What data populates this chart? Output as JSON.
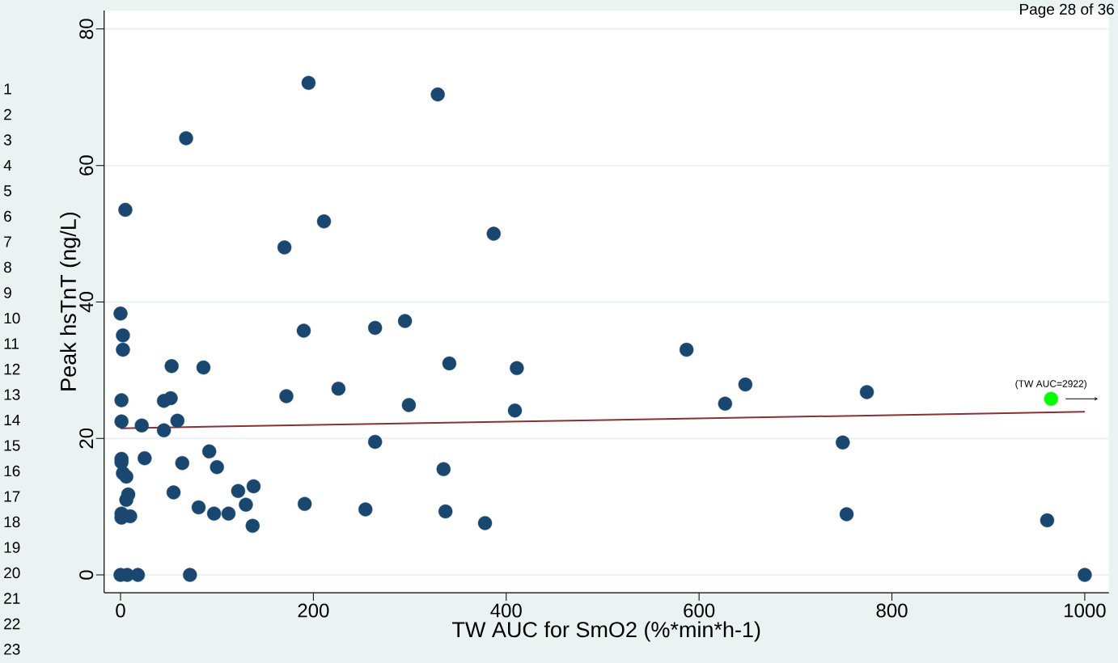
{
  "chart_data": {
    "type": "scatter",
    "xlabel": "TW AUC for SmO2 (%*min*h-1)",
    "ylabel": "Peak hsTnT (ng/L)",
    "xlim": [
      -17,
      1025
    ],
    "ylim": [
      -2.6,
      82.7
    ],
    "xticks": [
      0,
      200,
      400,
      600,
      800,
      1000
    ],
    "yticks": [
      0,
      20,
      40,
      60,
      80
    ],
    "grid": "y",
    "series": [
      {
        "marker": "circle",
        "color": "#1a476f",
        "x": [
          195,
          329,
          68,
          5,
          211,
          170,
          387,
          0,
          2.5,
          2.5,
          190,
          264,
          295,
          341,
          411,
          587,
          53,
          86,
          1,
          45,
          52,
          172,
          226,
          299,
          409,
          627,
          648,
          774,
          1,
          22,
          59,
          45,
          1,
          1,
          25,
          92,
          64,
          100,
          264,
          749,
          2.5,
          6,
          335,
          55,
          8,
          6,
          122,
          138,
          130,
          191,
          81,
          97,
          112,
          137,
          254,
          337,
          378,
          753,
          961,
          1,
          1,
          10,
          0,
          7,
          18,
          72,
          1000
        ],
        "values": [
          72.1,
          70.4,
          64.0,
          53.5,
          51.8,
          48.0,
          50.0,
          38.3,
          35.1,
          33.0,
          35.8,
          36.2,
          37.2,
          31.0,
          30.3,
          33.0,
          30.6,
          30.4,
          25.6,
          25.5,
          25.9,
          26.2,
          27.3,
          24.9,
          24.1,
          25.1,
          27.9,
          26.8,
          22.5,
          21.9,
          22.6,
          21.2,
          17.0,
          16.5,
          17.1,
          18.1,
          16.4,
          15.8,
          19.5,
          19.4,
          14.9,
          14.4,
          15.5,
          12.1,
          11.8,
          11.0,
          12.3,
          13.0,
          10.3,
          10.4,
          9.9,
          9.0,
          9.0,
          7.2,
          9.6,
          9.3,
          7.6,
          8.9,
          8.0,
          9.0,
          8.4,
          8.6,
          0,
          0,
          0,
          0,
          0
        ]
      },
      {
        "marker": "circle",
        "color": "#00ff00",
        "x": [
          965
        ],
        "values": [
          25.8
        ]
      },
      {
        "type": "line",
        "marker": "none",
        "color": "#8b3034",
        "x": [
          0,
          1000
        ],
        "values": [
          21.5,
          23.9
        ]
      }
    ],
    "annotations": [
      {
        "text": "(TW AUC=2922)",
        "x": 965,
        "y": 25.8
      },
      "Page 28 of 36",
      "1",
      "2",
      "3",
      "4",
      "5",
      "6",
      "7",
      "8",
      "9",
      "10",
      "11",
      "12",
      "13",
      "14",
      "15",
      "16",
      "17",
      "18",
      "19",
      "20",
      "21",
      "22",
      "23"
    ]
  }
}
